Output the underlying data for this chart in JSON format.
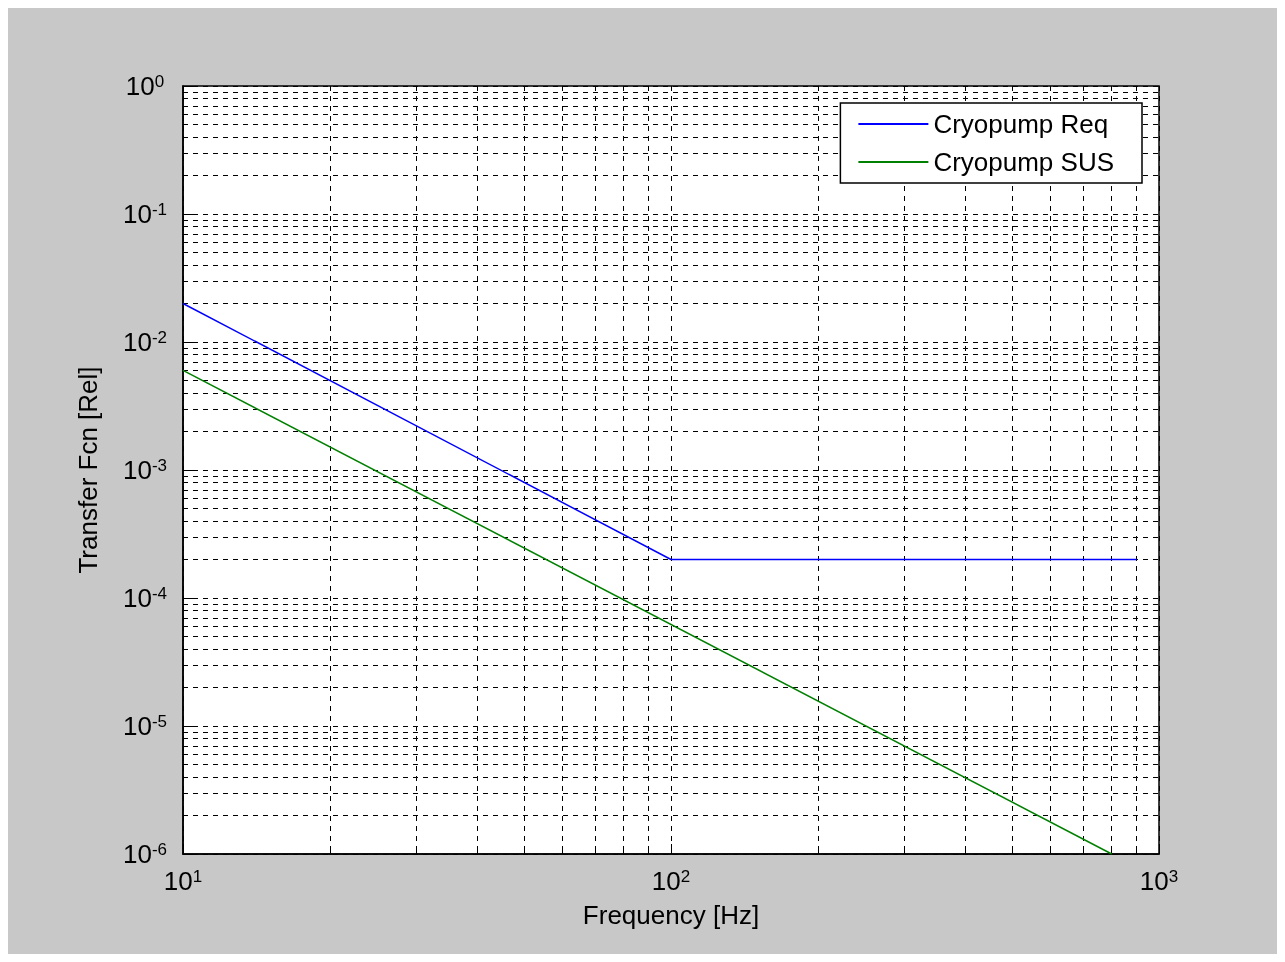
{
  "chart_data": {
    "type": "line",
    "xlabel": "Frequency [Hz]",
    "ylabel": "Transfer Fcn [Rel]",
    "log": "xy",
    "grid": true,
    "legend": "top right",
    "line_style": "solid",
    "marker": "none",
    "xlim": [
      10,
      1000
    ],
    "xticks": [
      {
        "value": 10,
        "label": "10$^{1}$"
      },
      {
        "value": 100,
        "label": "10$^{2}$"
      },
      {
        "value": 1000,
        "label": "10$^{3}$"
      }
    ],
    "ylim": [
      1e-06,
      1
    ],
    "yticks": [
      {
        "value": 1e-06,
        "label": "10$^{-6}$"
      },
      {
        "value": 1e-05,
        "label": "10$^{-5}$"
      },
      {
        "value": 0.0001,
        "label": "10$^{-4}$"
      },
      {
        "value": 0.001,
        "label": "10$^{-3}$"
      },
      {
        "value": 0.01,
        "label": "10$^{-2}$"
      },
      {
        "value": 0.1,
        "label": "10$^{-1}$"
      },
      {
        "value": 1,
        "label": "10$^{0}$"
      }
    ],
    "series": [
      {
        "name": "Cryopump Req",
        "color": "#0000ff",
        "x": [
          10,
          100,
          900
        ],
        "values": [
          0.02,
          0.0002,
          0.0002
        ]
      },
      {
        "name": "Cryopump SUS",
        "color": "#008000",
        "x": [
          10,
          800
        ],
        "values": [
          0.006,
          1e-06
        ]
      }
    ]
  }
}
